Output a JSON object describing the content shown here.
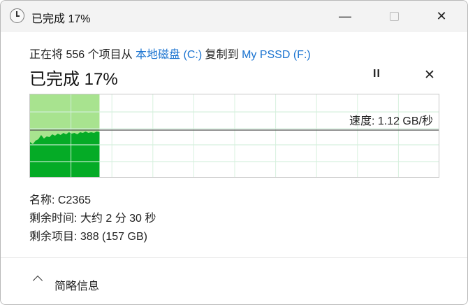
{
  "window": {
    "title": "已完成 17%",
    "icon": "clock-icon"
  },
  "dialog": {
    "desc_prefix": "正在将 556 个项目从 ",
    "source": "本地磁盘 (C:)",
    "desc_mid": " 复制到 ",
    "destination": "My PSSD (F:)",
    "progress_title": "已完成 17%",
    "progress_percent": 17,
    "pause_icon": "pause-icon",
    "cancel_icon": "close-icon"
  },
  "graph": {
    "speed_label": "速度: 1.12 GB/秒",
    "fill_color": "#05ab26",
    "done_color": "#a8e38f"
  },
  "details": [
    {
      "label": "名称:",
      "value": "C2365"
    },
    {
      "label": "剩余时间:",
      "value": "大约 2 分 30 秒"
    },
    {
      "label": "剩余项目:",
      "value": "388 (157 GB)"
    }
  ],
  "footer": {
    "toggle_label": "简略信息"
  }
}
